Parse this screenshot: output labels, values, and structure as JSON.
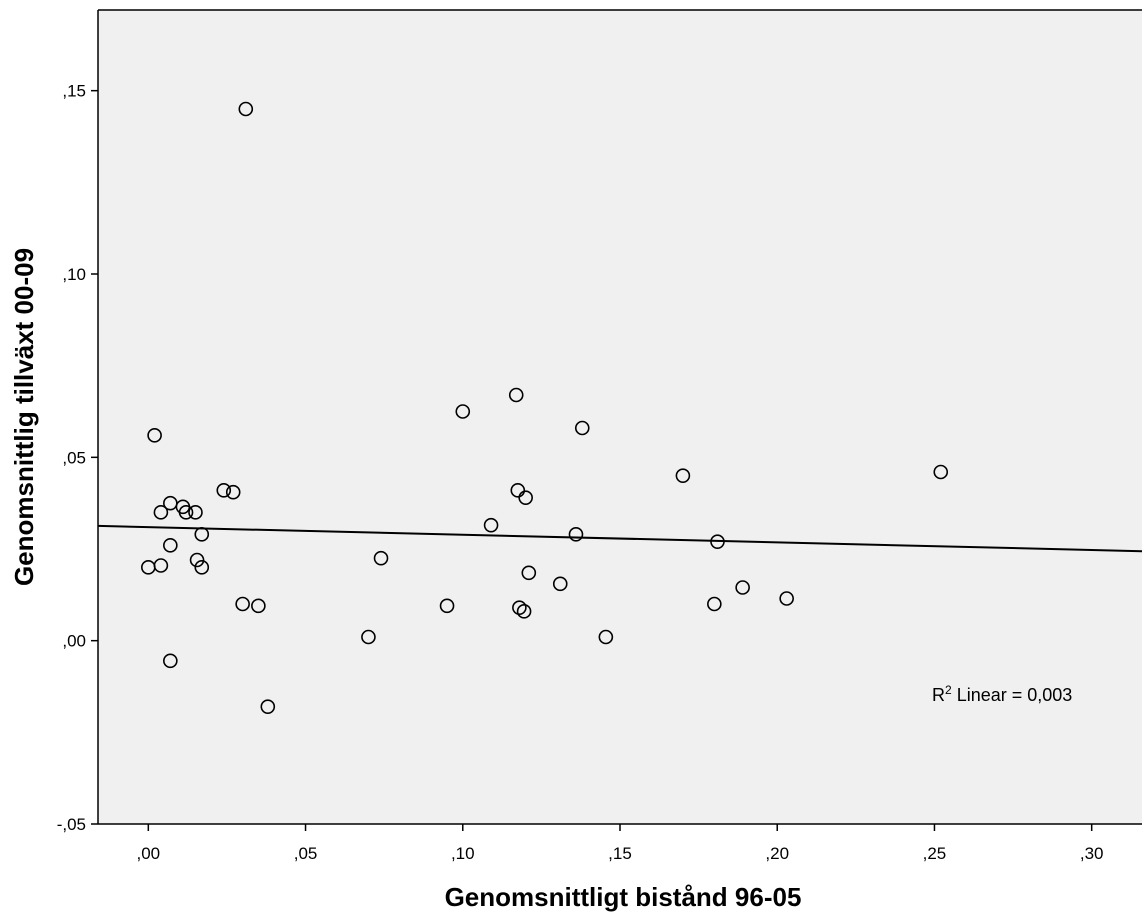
{
  "chart_data": {
    "type": "scatter",
    "xlabel": "Genomsnittligt bistånd 96-05",
    "ylabel": "Genomsnittlig tillväxt 00-09",
    "xlim": [
      -0.016,
      0.316
    ],
    "ylim": [
      -0.05,
      0.172
    ],
    "x_ticks": [
      0.0,
      0.05,
      0.1,
      0.15,
      0.2,
      0.25,
      0.3
    ],
    "x_tick_labels": [
      ",00",
      ",05",
      ",10",
      ",15",
      ",20",
      ",25",
      ",30"
    ],
    "y_ticks": [
      -0.05,
      0.0,
      0.05,
      0.1,
      0.15
    ],
    "y_tick_labels": [
      "-,05",
      ",00",
      ",05",
      ",10",
      ",15"
    ],
    "grid": false,
    "plot_background": "#f0f0f0",
    "marker": "open-circle",
    "annotation": {
      "r_text": "R",
      "r_sup": "2",
      "label": " Linear = 0,003"
    },
    "fit_line": {
      "x": [
        -0.016,
        0.316
      ],
      "y": [
        0.0313,
        0.0244
      ]
    },
    "series": [
      {
        "points": [
          {
            "x": 0.031,
            "y": 0.145
          },
          {
            "x": 0.002,
            "y": 0.056
          },
          {
            "x": 0.004,
            "y": 0.035
          },
          {
            "x": 0.007,
            "y": 0.0375
          },
          {
            "x": 0.011,
            "y": 0.0365
          },
          {
            "x": 0.012,
            "y": 0.035
          },
          {
            "x": 0.015,
            "y": 0.035
          },
          {
            "x": 0.024,
            "y": 0.041
          },
          {
            "x": 0.027,
            "y": 0.0405
          },
          {
            "x": 0.017,
            "y": 0.029
          },
          {
            "x": 0.007,
            "y": 0.026
          },
          {
            "x": 0.0155,
            "y": 0.022
          },
          {
            "x": 0.0,
            "y": 0.02
          },
          {
            "x": 0.004,
            "y": 0.0205
          },
          {
            "x": 0.017,
            "y": 0.02
          },
          {
            "x": 0.03,
            "y": 0.01
          },
          {
            "x": 0.035,
            "y": 0.0095
          },
          {
            "x": 0.007,
            "y": -0.0055
          },
          {
            "x": 0.038,
            "y": -0.018
          },
          {
            "x": 0.07,
            "y": 0.001
          },
          {
            "x": 0.074,
            "y": 0.0225
          },
          {
            "x": 0.095,
            "y": 0.0095
          },
          {
            "x": 0.1,
            "y": 0.0625
          },
          {
            "x": 0.117,
            "y": 0.067
          },
          {
            "x": 0.109,
            "y": 0.0315
          },
          {
            "x": 0.1175,
            "y": 0.041
          },
          {
            "x": 0.12,
            "y": 0.039
          },
          {
            "x": 0.121,
            "y": 0.0185
          },
          {
            "x": 0.118,
            "y": 0.009
          },
          {
            "x": 0.1195,
            "y": 0.008
          },
          {
            "x": 0.131,
            "y": 0.0155
          },
          {
            "x": 0.136,
            "y": 0.029
          },
          {
            "x": 0.138,
            "y": 0.058
          },
          {
            "x": 0.1455,
            "y": 0.001
          },
          {
            "x": 0.17,
            "y": 0.045
          },
          {
            "x": 0.181,
            "y": 0.027
          },
          {
            "x": 0.18,
            "y": 0.01
          },
          {
            "x": 0.189,
            "y": 0.0145
          },
          {
            "x": 0.203,
            "y": 0.0115
          },
          {
            "x": 0.252,
            "y": 0.046
          }
        ]
      }
    ]
  }
}
